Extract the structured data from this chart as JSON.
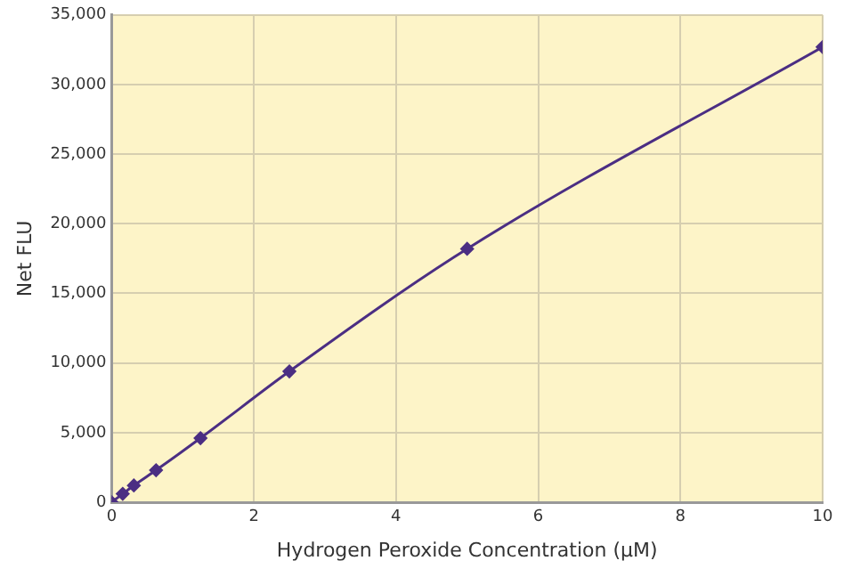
{
  "chart_data": {
    "type": "line",
    "xlabel": "Hydrogen Peroxide Concentration (µM)",
    "ylabel": "Net FLU",
    "x": [
      0,
      0.156,
      0.3125,
      0.625,
      1.25,
      2.5,
      5,
      10
    ],
    "series": [
      {
        "color": "#4b2e83",
        "values": [
          0,
          600,
          1200,
          2300,
          4600,
          9400,
          18200,
          32700
        ]
      }
    ],
    "xlim": [
      0,
      10
    ],
    "xticks": [
      0,
      2,
      4,
      6,
      8,
      10
    ],
    "ylim": [
      0,
      35000
    ],
    "yticks": [
      {
        "value": 0,
        "label": "0"
      },
      {
        "value": 5000,
        "label": "5,000"
      },
      {
        "value": 10000,
        "label": "10,000"
      },
      {
        "value": 15000,
        "label": "15,000"
      },
      {
        "value": 20000,
        "label": "20,000"
      },
      {
        "value": 25000,
        "label": "25,000"
      },
      {
        "value": 30000,
        "label": "30,000"
      },
      {
        "value": 35000,
        "label": "35,000"
      }
    ],
    "grid": true,
    "legend": false,
    "marker": "diamond",
    "line_style": "solid"
  }
}
